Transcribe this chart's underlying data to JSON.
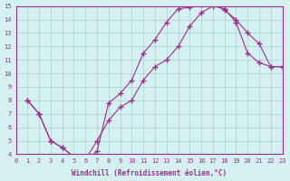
{
  "xlabel": "Windchill (Refroidissement éolien,°C)",
  "bg_color": "#d4f0f0",
  "line_color": "#9b2d8e",
  "grid_color": "#aacfcf",
  "xlim": [
    0,
    23
  ],
  "ylim": [
    4,
    15
  ],
  "xticks": [
    0,
    1,
    2,
    3,
    4,
    5,
    6,
    7,
    8,
    9,
    10,
    11,
    12,
    13,
    14,
    15,
    16,
    17,
    18,
    19,
    20,
    21,
    22,
    23
  ],
  "yticks": [
    4,
    5,
    6,
    7,
    8,
    9,
    10,
    11,
    12,
    13,
    14,
    15
  ],
  "series1_x": [
    1,
    2,
    3,
    4,
    5,
    6,
    7,
    8,
    9,
    10,
    11,
    12,
    13,
    14,
    15,
    16,
    17,
    18,
    19,
    20,
    21,
    22,
    23
  ],
  "series1_y": [
    8,
    7,
    5,
    4.5,
    3.8,
    3.6,
    4.2,
    7.8,
    8.5,
    9.5,
    11.5,
    12.5,
    13.8,
    14.8,
    14.9,
    15.1,
    15.2,
    14.7,
    14.0,
    13.0,
    12.2,
    10.5,
    10.5
  ],
  "series2_x": [
    1,
    2,
    3,
    4,
    5,
    6,
    7,
    8,
    9,
    10,
    11,
    12,
    13,
    14,
    15,
    16,
    17,
    18,
    19,
    20,
    21,
    22,
    23
  ],
  "series2_y": [
    8,
    7,
    5,
    4.5,
    3.8,
    3.6,
    5.0,
    6.5,
    7.5,
    8.0,
    9.5,
    10.5,
    11.0,
    12.0,
    13.5,
    14.5,
    15.0,
    14.8,
    13.8,
    11.5,
    10.8,
    10.5,
    10.5
  ]
}
